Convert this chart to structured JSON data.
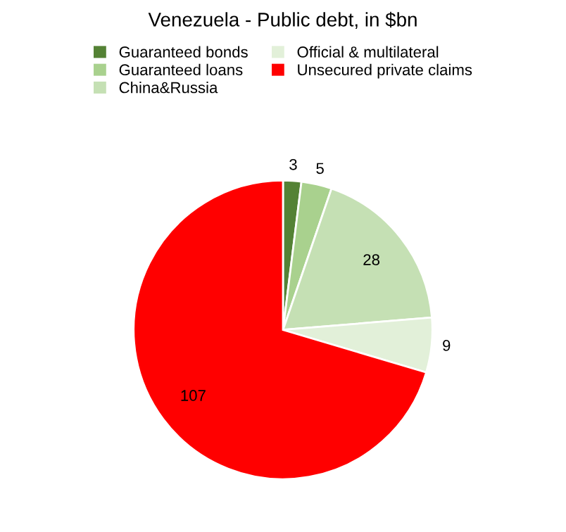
{
  "chart_data": {
    "type": "pie",
    "title": "Venezuela - Public debt, in $bn",
    "categories": [
      "Guaranteed bonds",
      "Guaranteed loans",
      "China&Russia",
      "Official & multilateral",
      "Unsecured private claims"
    ],
    "values": [
      3,
      5,
      28,
      9,
      107
    ],
    "colors": [
      "#548235",
      "#a9d18e",
      "#c5e0b4",
      "#e2f0d9",
      "#ff0000"
    ],
    "data_labels": true,
    "legend": "top"
  }
}
